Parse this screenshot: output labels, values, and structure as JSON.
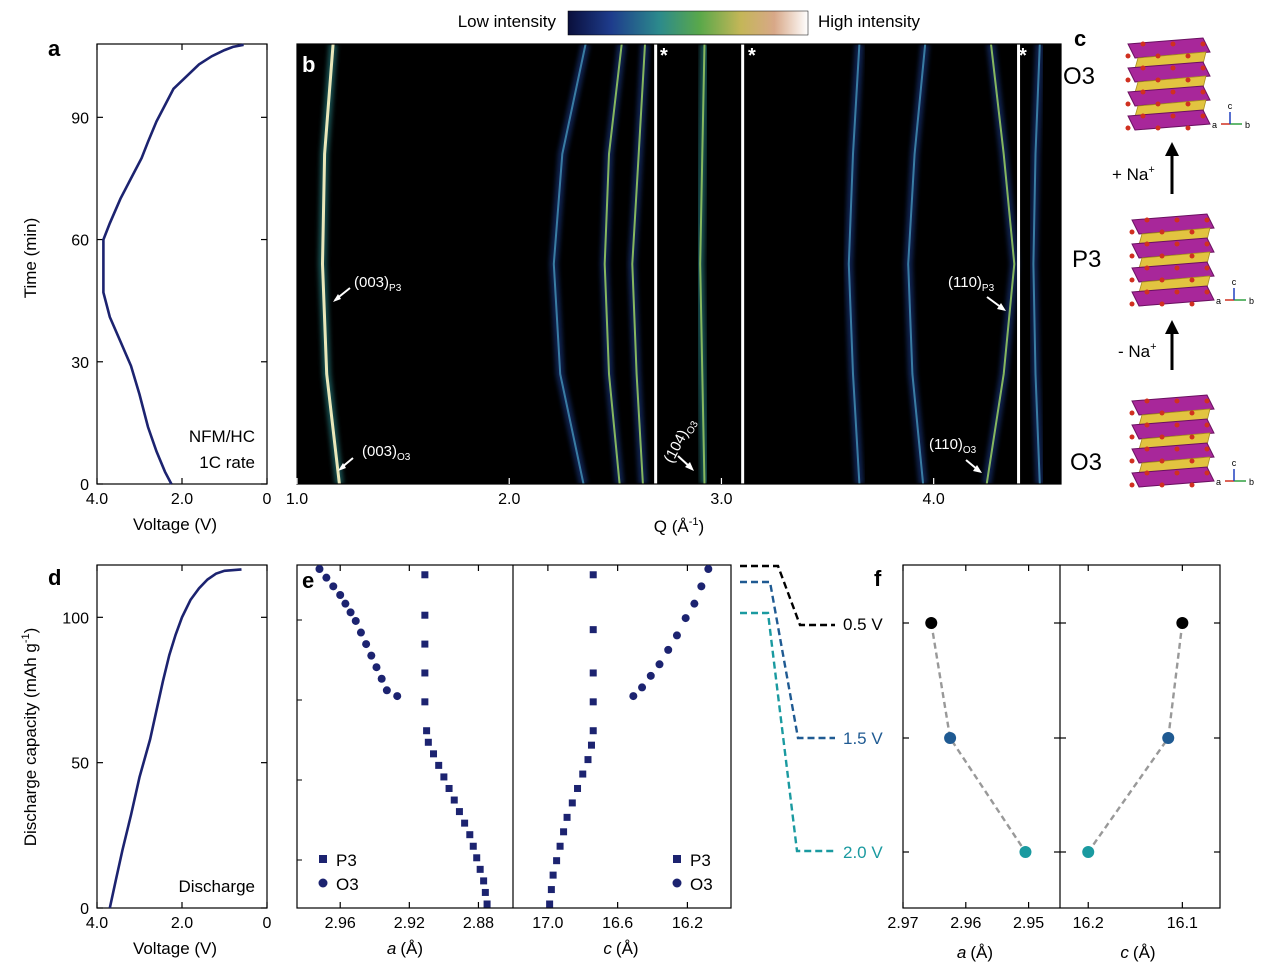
{
  "panel_labels": {
    "a": "a",
    "b": "b",
    "c": "c",
    "d": "d",
    "e": "e",
    "f": "f"
  },
  "colorbar": {
    "low_label": "Low intensity",
    "high_label": "High intensity",
    "stops": [
      "#0a0f3c",
      "#1e3c8c",
      "#2c8a8c",
      "#5aa84a",
      "#c4b658",
      "#d8a888",
      "#ffffff"
    ]
  },
  "colors": {
    "data": "#1c2370",
    "heat_bg": "#000000",
    "black_line": "#000000",
    "blue_line": "#1f5a92",
    "teal_line": "#1a9aa0",
    "grey_dash": "#999999",
    "mo": "#a8279a",
    "fe": "#e2c440",
    "o": "#d03020"
  },
  "axis_titles": {
    "time": "Time (min)",
    "voltage": "Voltage (V)",
    "q": "Q (Å",
    "q_sup": "-1",
    "q_end": ")",
    "discharge_cap": "Discharge capacity (mAh g",
    "discharge_cap_sup": "-1",
    "discharge_cap_end": ")",
    "a_axis": "a",
    "c_axis": "c",
    "angstrom": "(Å)"
  },
  "annotations": {
    "a_line1": "NFM/HC",
    "a_line2": "1C rate",
    "d_text": "Discharge",
    "peak_003_p3": "(003)",
    "peak_003_p3_sub": "P3",
    "peak_003_o3": "(003)",
    "peak_003_o3_sub": "O3",
    "peak_104_o3": "(104)",
    "peak_104_o3_sub": "O3",
    "peak_110_p3": "(110)",
    "peak_110_p3_sub": "P3",
    "peak_110_o3": "(110)",
    "peak_110_o3_sub": "O3",
    "star": "*"
  },
  "structure": {
    "top_phase": "O3",
    "mid_phase": "P3",
    "bottom_phase": "O3",
    "charge_label": "+ Na",
    "discharge_label": "- Na",
    "ion_sup": "+",
    "axis_a": "a",
    "axis_b": "b",
    "axis_c": "c"
  },
  "legend": {
    "p3": "P3",
    "o3": "O3"
  },
  "voltage_labels": [
    "0.5 V",
    "1.5 V",
    "2.0 V"
  ],
  "chart_data": [
    {
      "id": "a",
      "type": "line",
      "xlabel": "Voltage (V)",
      "ylabel": "Time (min)",
      "xlim": [
        4.0,
        0
      ],
      "ylim": [
        0,
        108
      ],
      "xticks": [
        "4.0",
        "2.0",
        "0"
      ],
      "yticks": [
        "0",
        "30",
        "60",
        "90"
      ],
      "x": [
        2.25,
        2.4,
        2.6,
        2.8,
        3.0,
        3.2,
        3.45,
        3.7,
        3.85,
        3.85,
        3.85,
        3.7,
        3.45,
        3.2,
        2.95,
        2.8,
        2.6,
        2.4,
        2.2,
        1.9,
        1.6,
        1.3,
        1.0,
        0.8,
        0.55
      ],
      "y": [
        0,
        3,
        8,
        14,
        22,
        29,
        35,
        41,
        47,
        52,
        60,
        64,
        70,
        75,
        80,
        84,
        89,
        93,
        97,
        100,
        103,
        105,
        106.5,
        107.3,
        107.8
      ]
    },
    {
      "id": "b",
      "type": "heatmap",
      "xlabel": "Q (Å-1)",
      "xlim": [
        1.0,
        4.6
      ],
      "ylim": [
        0,
        108
      ],
      "xticks": [
        "1.0",
        "2.0",
        "3.0",
        "4.0"
      ],
      "peaks": [
        {
          "name": "(003)",
          "q": [
            1.2,
            1.14,
            1.12,
            1.13,
            1.17
          ],
          "intensity": 1.0
        },
        {
          "name": "p2",
          "q": [
            2.35,
            2.24,
            2.21,
            2.25,
            2.36
          ],
          "intensity": 0.55
        },
        {
          "name": "p3",
          "q": [
            2.52,
            2.47,
            2.45,
            2.47,
            2.53
          ],
          "intensity": 0.7
        },
        {
          "name": "p4",
          "q": [
            2.63,
            2.6,
            2.58,
            2.61,
            2.64
          ],
          "intensity": 0.75
        },
        {
          "name": "(104)",
          "q": [
            2.92,
            2.91,
            2.9,
            2.91,
            2.92
          ],
          "intensity": 0.9
        },
        {
          "name": "p6",
          "q": [
            3.65,
            3.62,
            3.6,
            3.62,
            3.65
          ],
          "intensity": 0.45
        },
        {
          "name": "p7",
          "q": [
            3.95,
            3.9,
            3.88,
            3.91,
            3.96
          ],
          "intensity": 0.5
        },
        {
          "name": "(110)",
          "q": [
            4.25,
            4.33,
            4.38,
            4.33,
            4.27
          ],
          "intensity": 0.75
        },
        {
          "name": "p9",
          "q": [
            4.5,
            4.48,
            4.47,
            4.48,
            4.5
          ],
          "intensity": 0.45
        }
      ],
      "reference_lines_q": [
        2.69,
        3.1,
        4.4
      ]
    },
    {
      "id": "d",
      "type": "line",
      "xlabel": "Voltage (V)",
      "ylabel": "Discharge capacity (mAh g-1)",
      "xlim": [
        4.0,
        0
      ],
      "ylim": [
        0,
        118
      ],
      "xticks": [
        "4.0",
        "2.0",
        "0"
      ],
      "yticks": [
        "0",
        "50",
        "100"
      ],
      "x": [
        3.7,
        3.55,
        3.4,
        3.2,
        3.0,
        2.75,
        2.6,
        2.45,
        2.3,
        2.15,
        2.0,
        1.8,
        1.6,
        1.4,
        1.2,
        1.0,
        0.6
      ],
      "y": [
        0,
        10,
        20,
        32,
        45,
        58,
        68,
        78,
        87,
        94,
        100,
        106,
        110,
        113,
        115,
        116,
        116.5
      ]
    },
    {
      "id": "e_a",
      "type": "scatter",
      "xlabel": "a (Å)",
      "xlim": [
        2.985,
        2.86
      ],
      "ylim": [
        0,
        116
      ],
      "xticks": [
        "2.96",
        "2.92",
        "2.88"
      ],
      "series": [
        {
          "name": "P3",
          "marker": "square",
          "x": [
            2.875,
            2.876,
            2.877,
            2.879,
            2.881,
            2.883,
            2.885,
            2.888,
            2.891,
            2.894,
            2.897,
            2.9,
            2.903,
            2.906,
            2.909,
            2.91,
            2.911,
            2.911,
            2.911,
            2.911,
            2.911
          ],
          "y": [
            0,
            4,
            8,
            12,
            16,
            20,
            24,
            28,
            32,
            36,
            40,
            44,
            48,
            52,
            56,
            60,
            70,
            80,
            90,
            100,
            114
          ]
        },
        {
          "name": "O3",
          "marker": "circle",
          "x": [
            2.927,
            2.933,
            2.936,
            2.939,
            2.942,
            2.945,
            2.948,
            2.951,
            2.954,
            2.957,
            2.96,
            2.964,
            2.968,
            2.972
          ],
          "y": [
            72,
            74,
            78,
            82,
            86,
            90,
            94,
            98,
            101,
            104,
            107,
            110,
            113,
            116
          ]
        }
      ]
    },
    {
      "id": "e_c",
      "type": "scatter",
      "xlabel": "c (Å)",
      "xlim": [
        17.2,
        15.95
      ],
      "ylim": [
        0,
        116
      ],
      "xticks": [
        "17.0",
        "16.6",
        "16.2"
      ],
      "series": [
        {
          "name": "P3",
          "marker": "square",
          "x": [
            16.99,
            16.98,
            16.97,
            16.95,
            16.93,
            16.91,
            16.89,
            16.86,
            16.83,
            16.8,
            16.77,
            16.75,
            16.74,
            16.74,
            16.74,
            16.74,
            16.74
          ],
          "y": [
            0,
            5,
            10,
            15,
            20,
            25,
            30,
            35,
            40,
            45,
            50,
            55,
            60,
            70,
            80,
            95,
            114
          ]
        },
        {
          "name": "O3",
          "marker": "circle",
          "x": [
            16.51,
            16.46,
            16.41,
            16.36,
            16.31,
            16.26,
            16.21,
            16.16,
            16.12,
            16.08
          ],
          "y": [
            72,
            75,
            79,
            83,
            88,
            93,
            99,
            104,
            110,
            116
          ]
        }
      ]
    },
    {
      "id": "f_a",
      "type": "scatter",
      "xlabel": "a (Å)",
      "xlim": [
        2.97,
        2.945
      ],
      "xticks": [
        "2.97",
        "2.96",
        "2.95"
      ],
      "series": [
        {
          "name": "a",
          "x": [
            2.9655,
            2.9625,
            2.9505
          ],
          "y_labels": [
            "0.5 V",
            "1.5 V",
            "2.0 V"
          ],
          "colors": [
            "#000000",
            "#1f5a92",
            "#1a9aa0"
          ]
        }
      ]
    },
    {
      "id": "f_c",
      "type": "scatter",
      "xlabel": "c (Å)",
      "xlim": [
        16.23,
        16.06
      ],
      "xticks": [
        "16.2",
        "16.1"
      ],
      "series": [
        {
          "name": "c",
          "x": [
            16.1,
            16.115,
            16.2
          ],
          "y_labels": [
            "0.5 V",
            "1.5 V",
            "2.0 V"
          ],
          "colors": [
            "#000000",
            "#1f5a92",
            "#1a9aa0"
          ]
        }
      ]
    }
  ]
}
